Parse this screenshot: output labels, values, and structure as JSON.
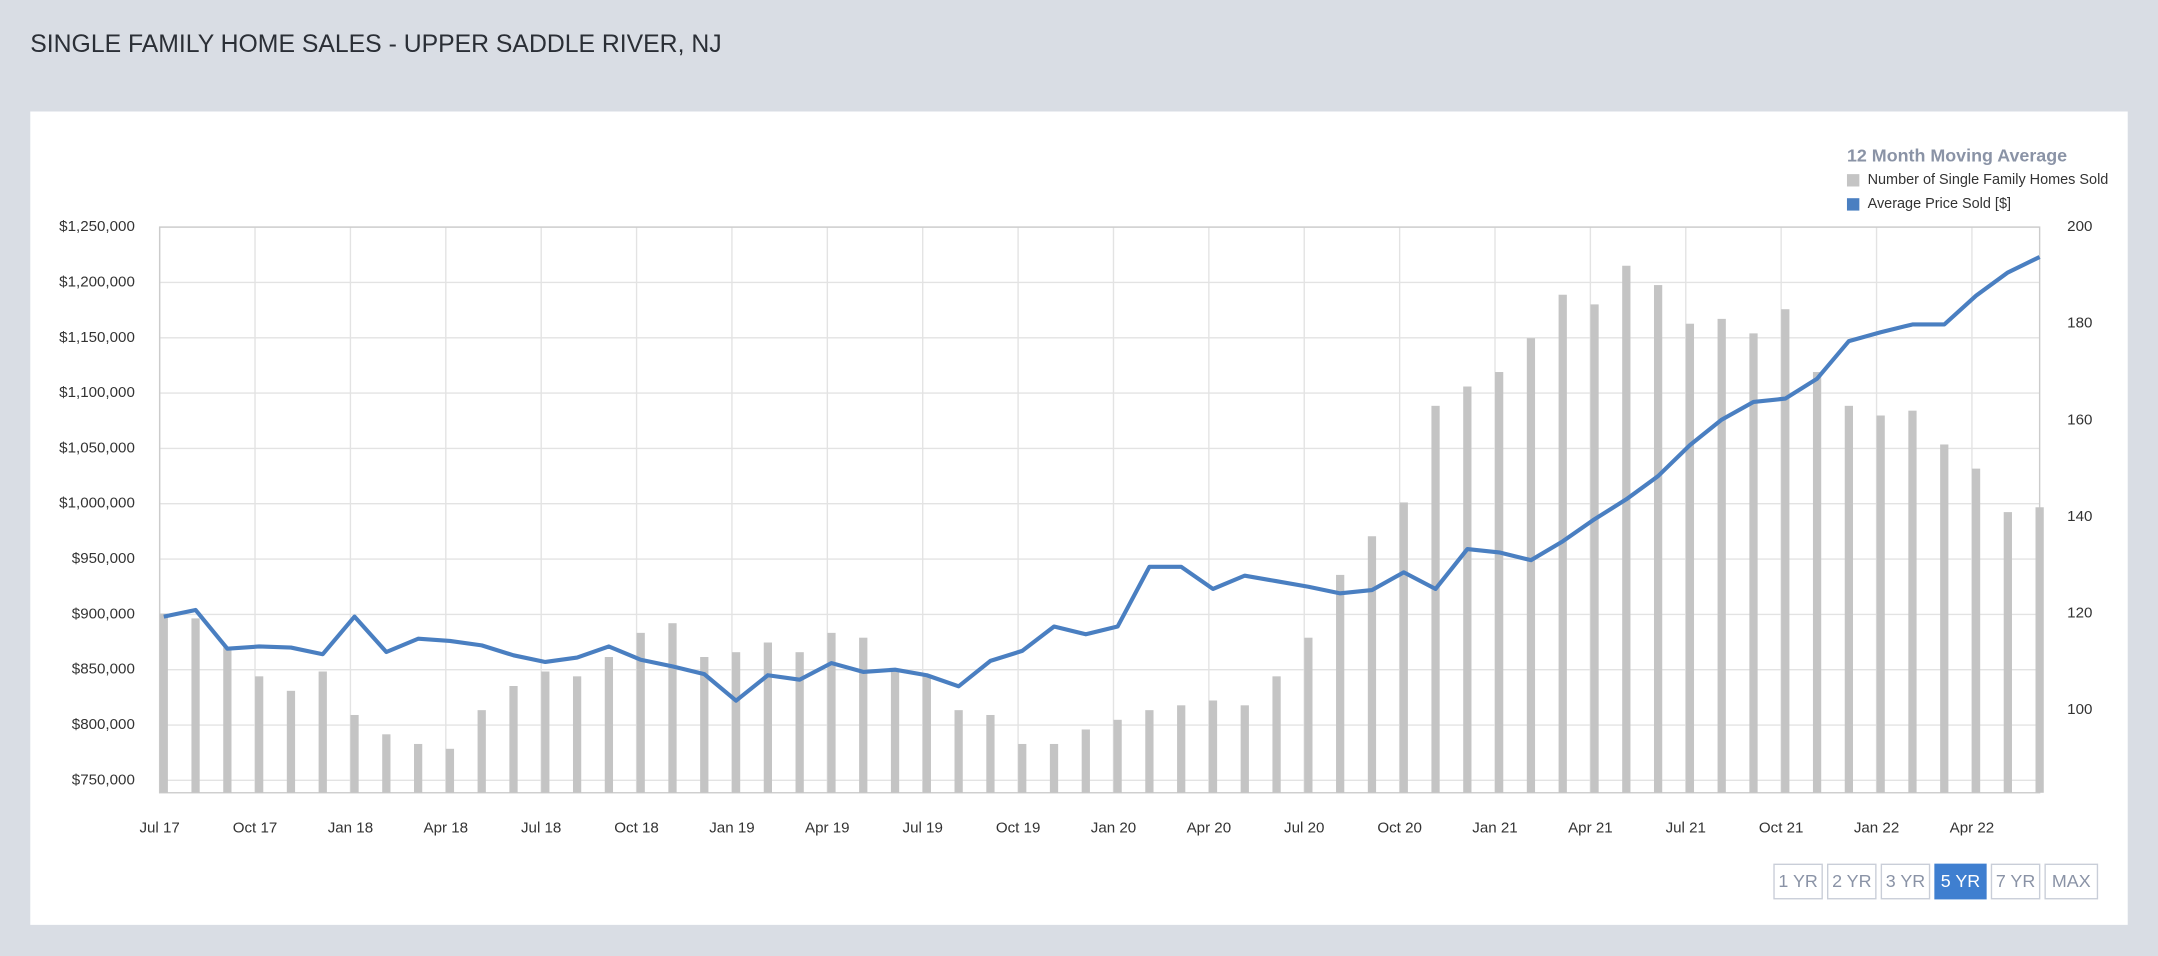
{
  "chart_data": {
    "type": "bar-line",
    "title": "SINGLE FAMILY HOME SALES - UPPER SADDLE RIVER, NJ",
    "legend_title": "12 Month Moving Average",
    "categories": [
      "Jul 17",
      null,
      null,
      "Oct 17",
      null,
      null,
      "Jan 18",
      null,
      null,
      "Apr 18",
      null,
      null,
      "Jul 18",
      null,
      null,
      "Oct 18",
      null,
      null,
      "Jan 19",
      null,
      null,
      "Apr 19",
      null,
      null,
      "Jul 19",
      null,
      null,
      "Oct 19",
      null,
      null,
      "Jan 20",
      null,
      null,
      "Apr 20",
      null,
      null,
      "Jul 20",
      null,
      null,
      "Oct 20",
      null,
      null,
      "Jan 21",
      null,
      null,
      "Apr 21",
      null,
      null,
      "Jul 21",
      null,
      null,
      "Oct 21",
      null,
      null,
      "Jan 22",
      null,
      null,
      "Apr 22",
      null,
      null
    ],
    "series": [
      {
        "name": "Number of Single Family Homes Sold",
        "type": "bar",
        "axis": "y2",
        "color": "#c4c4c4",
        "values": [
          120,
          119,
          113,
          107,
          104,
          108,
          99,
          95,
          93,
          92,
          100,
          105,
          108,
          107,
          111,
          116,
          118,
          111,
          112,
          114,
          112,
          116,
          115,
          108,
          107,
          100,
          99,
          93,
          93,
          96,
          98,
          100,
          101,
          102,
          101,
          107,
          115,
          128,
          136,
          143,
          163,
          167,
          170,
          177,
          186,
          184,
          192,
          188,
          180,
          181,
          178,
          183,
          170,
          163,
          161,
          162,
          155,
          150,
          141,
          142
        ]
      },
      {
        "name": "Average Price Sold [$]",
        "type": "line",
        "axis": "y",
        "color": "#4a7fc1",
        "values": [
          898000,
          904000,
          869000,
          871000,
          870000,
          864000,
          898000,
          866000,
          878000,
          876000,
          872000,
          863000,
          857000,
          861000,
          871000,
          859000,
          853000,
          846000,
          822000,
          845000,
          841000,
          856000,
          848000,
          850000,
          845000,
          835000,
          858000,
          867000,
          889000,
          882000,
          889000,
          943000,
          943000,
          923000,
          935000,
          930000,
          925000,
          919000,
          922000,
          938000,
          923000,
          959000,
          956000,
          949000,
          966000,
          986000,
          1004000,
          1025000,
          1053000,
          1076000,
          1092000,
          1095000,
          1113000,
          1147000,
          1155000,
          1162000,
          1162000,
          1188000,
          1209000,
          1223000
        ]
      }
    ],
    "ylim": [
      738800,
      1250000
    ],
    "yticks": [
      {
        "value": 750000,
        "label": "$750,000"
      },
      {
        "value": 800000,
        "label": "$800,000"
      },
      {
        "value": 850000,
        "label": "$850,000"
      },
      {
        "value": 900000,
        "label": "$900,000"
      },
      {
        "value": 950000,
        "label": "$950,000"
      },
      {
        "value": 1000000,
        "label": "$1,000,000"
      },
      {
        "value": 1050000,
        "label": "$1,050,000"
      },
      {
        "value": 1100000,
        "label": "$1,100,000"
      },
      {
        "value": 1150000,
        "label": "$1,150,000"
      },
      {
        "value": 1200000,
        "label": "$1,200,000"
      },
      {
        "value": 1250000,
        "label": "$1,250,000"
      }
    ],
    "y2lim": [
      82.9,
      200
    ],
    "y2ticks": [
      100,
      120,
      140,
      160,
      180,
      200
    ],
    "grid": true
  },
  "range_buttons": [
    "1 YR",
    "2 YR",
    "3 YR",
    "5 YR",
    "7 YR",
    "MAX"
  ],
  "active_range": "5 YR"
}
